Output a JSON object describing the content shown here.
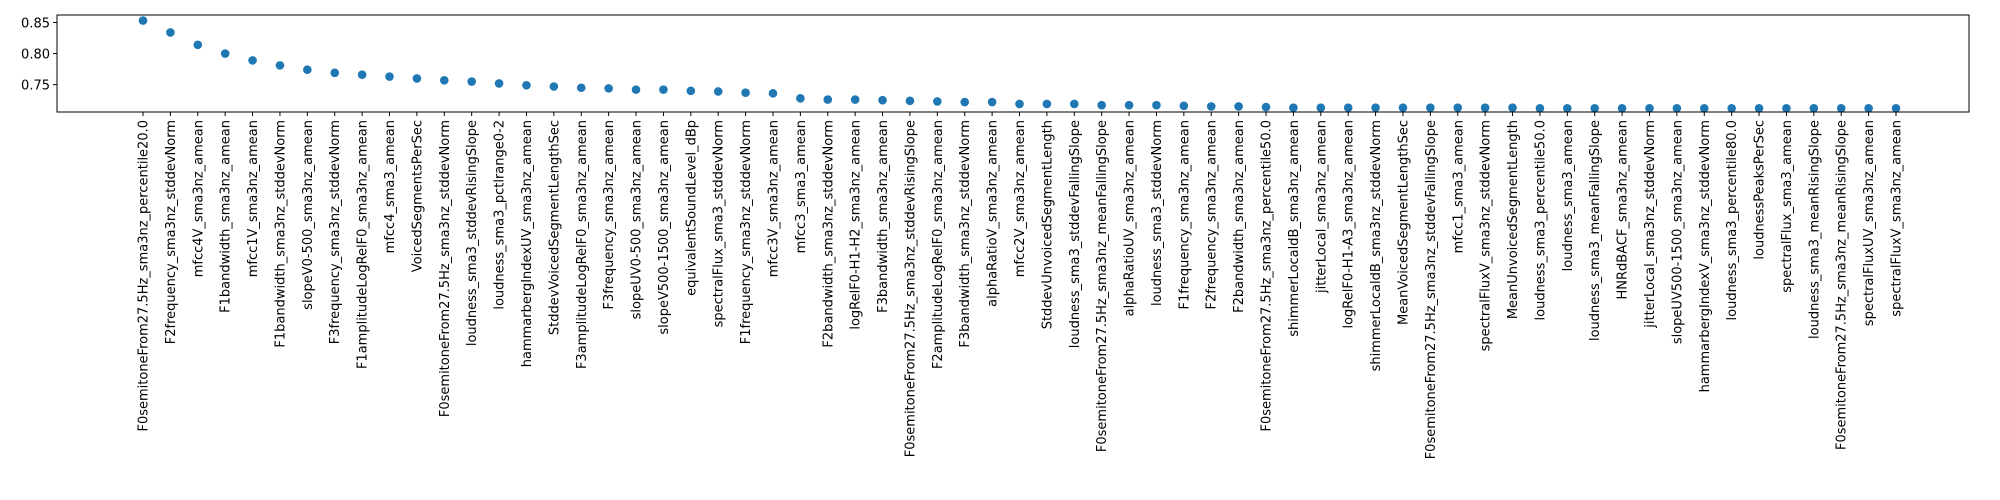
{
  "chart_data": {
    "type": "scatter",
    "title": "",
    "xlabel": "",
    "ylabel": "",
    "ylim": [
      0.706,
      0.862
    ],
    "yticks": [
      0.75,
      0.8,
      0.85
    ],
    "ytick_labels": [
      "0.75",
      "0.80",
      "0.85"
    ],
    "grid": false,
    "marker_color": "#1f77b4",
    "categories": [
      "F0semitoneFrom27.5Hz_sma3nz_percentile20.0",
      "F2frequency_sma3nz_stddevNorm",
      "mfcc4V_sma3nz_amean",
      "F1bandwidth_sma3nz_amean",
      "mfcc1V_sma3nz_amean",
      "F1bandwidth_sma3nz_stddevNorm",
      "slopeV0-500_sma3nz_amean",
      "F3frequency_sma3nz_stddevNorm",
      "F1amplitudeLogRelF0_sma3nz_amean",
      "mfcc4_sma3_amean",
      "VoicedSegmentsPerSec",
      "F0semitoneFrom27.5Hz_sma3nz_stddevNorm",
      "loudness_sma3_stddevRisingSlope",
      "loudness_sma3_pctlrange0-2",
      "hammarbergIndexUV_sma3nz_amean",
      "StddevVoicedSegmentLengthSec",
      "F3amplitudeLogRelF0_sma3nz_amean",
      "F3frequency_sma3nz_amean",
      "slopeUV0-500_sma3nz_amean",
      "slopeV500-1500_sma3nz_amean",
      "equivalentSoundLevel_dBp",
      "spectralFlux_sma3_stddevNorm",
      "F1frequency_sma3nz_stddevNorm",
      "mfcc3V_sma3nz_amean",
      "mfcc3_sma3_amean",
      "F2bandwidth_sma3nz_stddevNorm",
      "logRelF0-H1-H2_sma3nz_amean",
      "F3bandwidth_sma3nz_amean",
      "F0semitoneFrom27.5Hz_sma3nz_stddevRisingSlope",
      "F2amplitudeLogRelF0_sma3nz_amean",
      "F3bandwidth_sma3nz_stddevNorm",
      "alphaRatioV_sma3nz_amean",
      "mfcc2V_sma3nz_amean",
      "StddevUnvoicedSegmentLength",
      "loudness_sma3_stddevFallingSlope",
      "F0semitoneFrom27.5Hz_sma3nz_meanFallingSlope",
      "alphaRatioUV_sma3nz_amean",
      "loudness_sma3_stddevNorm",
      "F1frequency_sma3nz_amean",
      "F2frequency_sma3nz_amean",
      "F2bandwidth_sma3nz_amean",
      "F0semitoneFrom27.5Hz_sma3nz_percentile50.0",
      "shimmerLocaldB_sma3nz_amean",
      "jitterLocal_sma3nz_amean",
      "logRelF0-H1-A3_sma3nz_amean",
      "shimmerLocaldB_sma3nz_stddevNorm",
      "MeanVoicedSegmentLengthSec",
      "F0semitoneFrom27.5Hz_sma3nz_stddevFallingSlope",
      "mfcc1_sma3_amean",
      "spectralFluxV_sma3nz_stddevNorm",
      "MeanUnvoicedSegmentLength",
      "loudness_sma3_percentile50.0",
      "loudness_sma3_amean",
      "loudness_sma3_meanFallingSlope",
      "HNRdBACF_sma3nz_amean",
      "jitterLocal_sma3nz_stddevNorm",
      "slopeUV500-1500_sma3nz_amean",
      "hammarbergIndexV_sma3nz_stddevNorm",
      "loudness_sma3_percentile80.0",
      "loudnessPeaksPerSec",
      "spectralFlux_sma3_amean",
      "loudness_sma3_meanRisingSlope",
      "F0semitoneFrom27.5Hz_sma3nz_meanRisingSlope",
      "spectralFluxUV_sma3nz_amean",
      "spectralFluxV_sma3nz_amean"
    ],
    "values": [
      0.853,
      0.834,
      0.814,
      0.8,
      0.789,
      0.781,
      0.774,
      0.769,
      0.766,
      0.763,
      0.76,
      0.757,
      0.755,
      0.752,
      0.749,
      0.747,
      0.745,
      0.744,
      0.742,
      0.742,
      0.74,
      0.739,
      0.737,
      0.736,
      0.728,
      0.726,
      0.726,
      0.725,
      0.724,
      0.723,
      0.722,
      0.722,
      0.719,
      0.719,
      0.719,
      0.717,
      0.717,
      0.717,
      0.716,
      0.715,
      0.715,
      0.714,
      0.713,
      0.713,
      0.713,
      0.713,
      0.713,
      0.713,
      0.713,
      0.713,
      0.713,
      0.712,
      0.712,
      0.712,
      0.712,
      0.712,
      0.712,
      0.712,
      0.712,
      0.712,
      0.712,
      0.712,
      0.712,
      0.712,
      0.712
    ]
  }
}
